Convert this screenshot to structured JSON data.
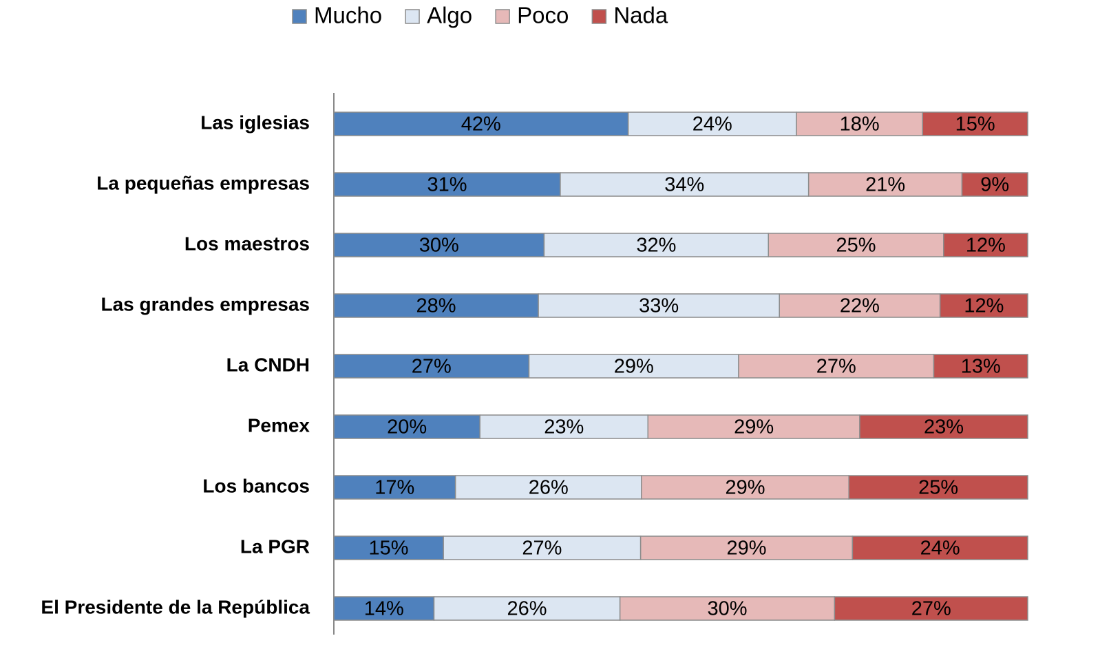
{
  "chart_data": {
    "type": "bar",
    "orientation": "horizontal",
    "stacked": true,
    "legend": "top",
    "categories": [
      "Las iglesias",
      "La pequeñas empresas",
      "Los maestros",
      "Las grandes empresas",
      "La CNDH",
      "Pemex",
      "Los bancos",
      "La PGR",
      "El Presidente de la República"
    ],
    "series": [
      {
        "name": "Mucho",
        "color": "#4f81bd",
        "values": [
          42,
          31,
          30,
          28,
          27,
          20,
          17,
          15,
          14
        ],
        "value_labels": [
          "42%",
          "31%",
          "30%",
          "28%",
          "27%",
          "20%",
          "17%",
          "15%",
          "14%"
        ]
      },
      {
        "name": "Algo",
        "color": "#dce6f2",
        "values": [
          24,
          34,
          32,
          33,
          29,
          23,
          26,
          27,
          26
        ],
        "value_labels": [
          "24%",
          "34%",
          "32%",
          "33%",
          "29%",
          "23%",
          "26%",
          "27%",
          "26%"
        ]
      },
      {
        "name": "Poco",
        "color": "#e6b9b8",
        "values": [
          18,
          21,
          25,
          22,
          27,
          29,
          29,
          29,
          30
        ],
        "value_labels": [
          "18%",
          "21%",
          "25%",
          "22%",
          "27%",
          "29%",
          "29%",
          "29%",
          "30%"
        ]
      },
      {
        "name": "Nada",
        "color": "#c0504d",
        "values": [
          15,
          9,
          12,
          12,
          13,
          23,
          25,
          24,
          27
        ],
        "value_labels": [
          "15%",
          "9%",
          "12%",
          "12%",
          "13%",
          "23%",
          "25%",
          "24%",
          "27%"
        ]
      }
    ]
  }
}
